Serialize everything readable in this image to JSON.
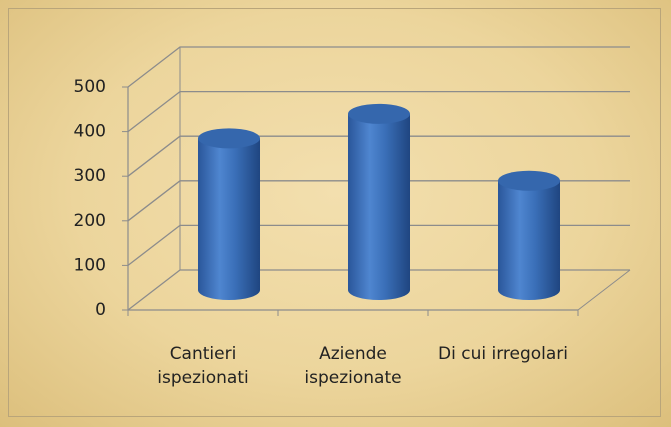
{
  "chart_data": {
    "type": "bar3d",
    "categories": [
      "Cantieri ispezionati",
      "Aziende ispezionate",
      "Di cui irregolari"
    ],
    "values": [
      340,
      395,
      245
    ],
    "color": "#3a6fb8",
    "ylim": [
      0,
      500
    ],
    "yticks": [
      0,
      100,
      200,
      300,
      400,
      500
    ],
    "grid": true
  }
}
